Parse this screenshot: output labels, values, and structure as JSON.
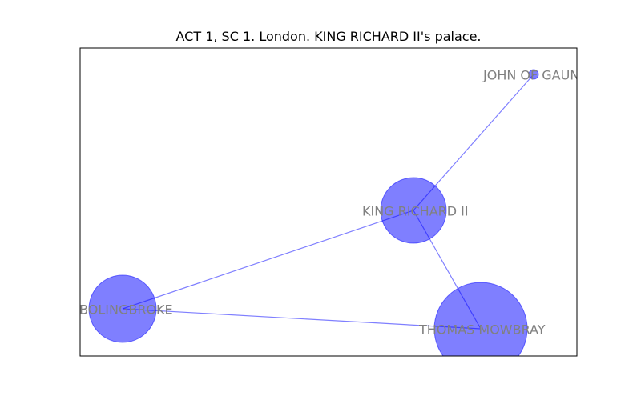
{
  "title": "ACT 1, SC 1. London. KING RICHARD II's palace.",
  "colors": {
    "node_fill": "#0000ff",
    "edge": "#0000ff",
    "label": "#808080",
    "frame": "#000000"
  },
  "graph": {
    "nodes": [
      {
        "id": "gaunt",
        "label": "JOHN OF GAUNT",
        "size": "small"
      },
      {
        "id": "richard",
        "label": "KING RICHARD II",
        "size": "medium"
      },
      {
        "id": "bolingbroke",
        "label": "HENRY BOLINGBROKE",
        "size": "medium"
      },
      {
        "id": "mowbray",
        "label": "THOMAS MOWBRAY",
        "size": "large"
      }
    ],
    "edges": [
      {
        "source": "richard",
        "target": "gaunt"
      },
      {
        "source": "richard",
        "target": "bolingbroke"
      },
      {
        "source": "richard",
        "target": "mowbray"
      },
      {
        "source": "bolingbroke",
        "target": "mowbray"
      }
    ]
  }
}
